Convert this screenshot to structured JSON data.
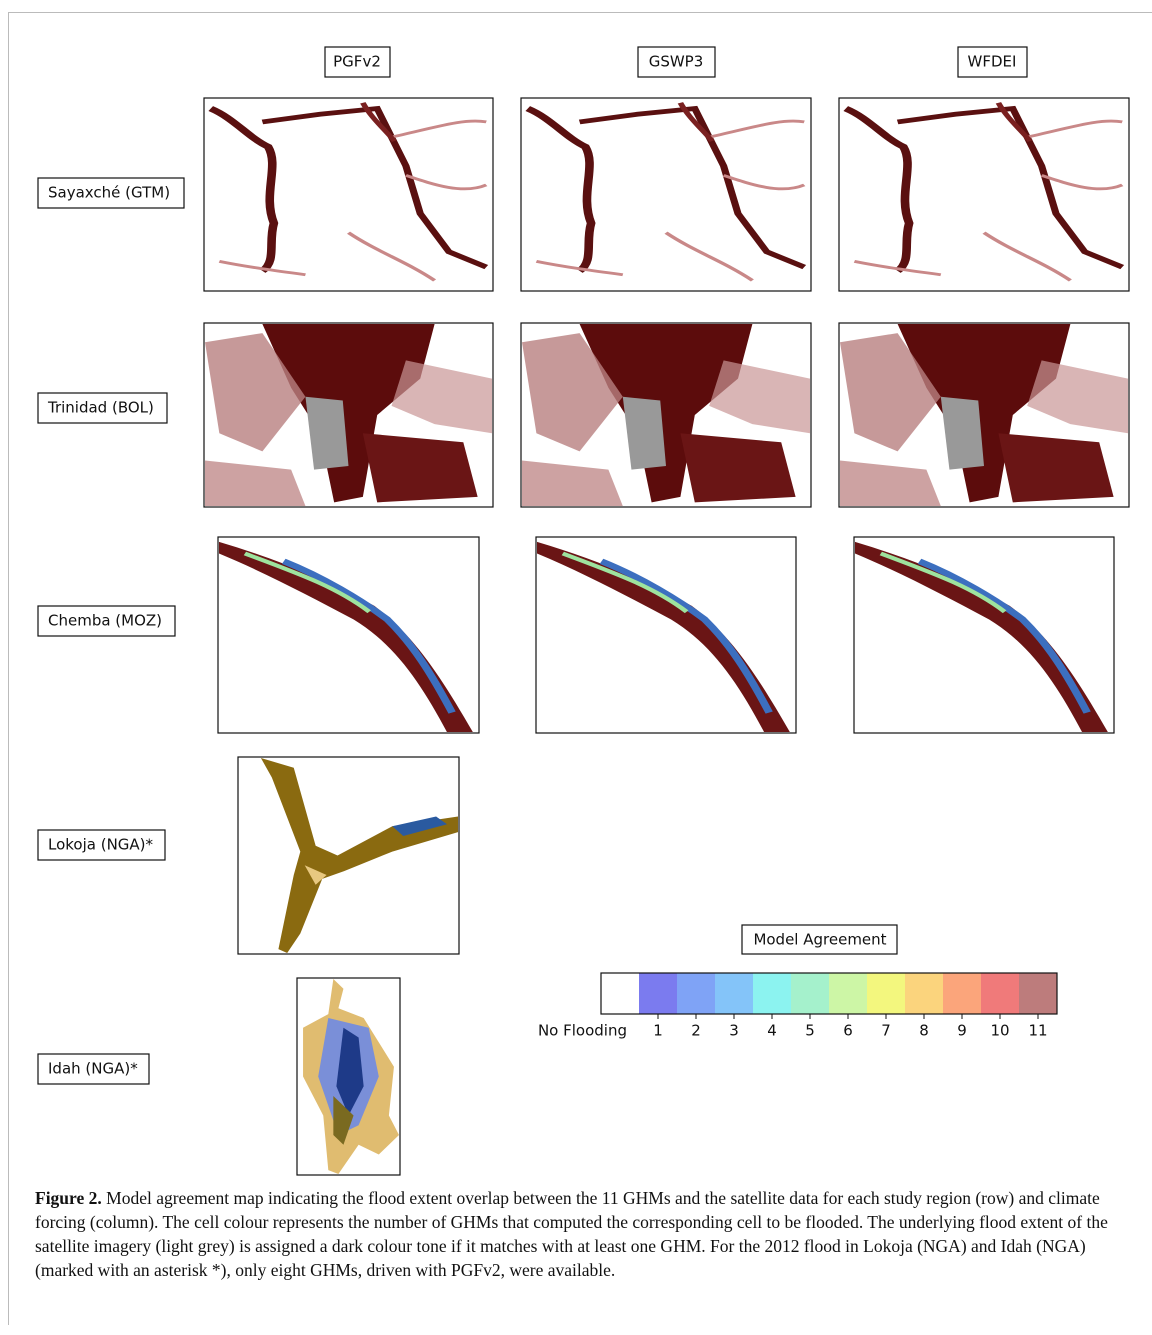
{
  "columns": [
    "PGFv2",
    "GSWP3",
    "WFDEI"
  ],
  "rows": [
    "Sayaxché (GTM)",
    "Trinidad (BOL)",
    "Chemba (MOZ)",
    "Lokoja (NGA)*",
    "Idah (NGA)*"
  ],
  "legend": {
    "title": "Model Agreement",
    "items": [
      {
        "label": "No Flooding",
        "color": "#ffffff"
      },
      {
        "label": 1,
        "color": "#7b7bef"
      },
      {
        "label": 2,
        "color": "#7fa3f6"
      },
      {
        "label": 3,
        "color": "#84c4f9"
      },
      {
        "label": 4,
        "color": "#8cf3f0"
      },
      {
        "label": 5,
        "color": "#a5f1cc"
      },
      {
        "label": 6,
        "color": "#cdf6a6"
      },
      {
        "label": 7,
        "color": "#f3f77e"
      },
      {
        "label": 8,
        "color": "#fbd47d"
      },
      {
        "label": 9,
        "color": "#fba57b"
      },
      {
        "label": 10,
        "color": "#f07a7a"
      },
      {
        "label": 11,
        "color": "#bd7c7c"
      }
    ]
  },
  "caption": {
    "label": "Figure 2.",
    "text": "Model agreement map indicating the flood extent overlap between the 11 GHMs and the satellite data for each study region (row) and climate forcing (column). The cell colour represents the number of GHMs that computed the corresponding cell to be flooded. The underlying flood extent of the satellite imagery (light grey) is assigned a dark colour tone if it matches with at least one GHM. For the 2012 flood in Lokoja (NGA) and Idah (NGA) (marked with an asterisk *), only eight GHMs, driven with PGFv2, were available."
  }
}
